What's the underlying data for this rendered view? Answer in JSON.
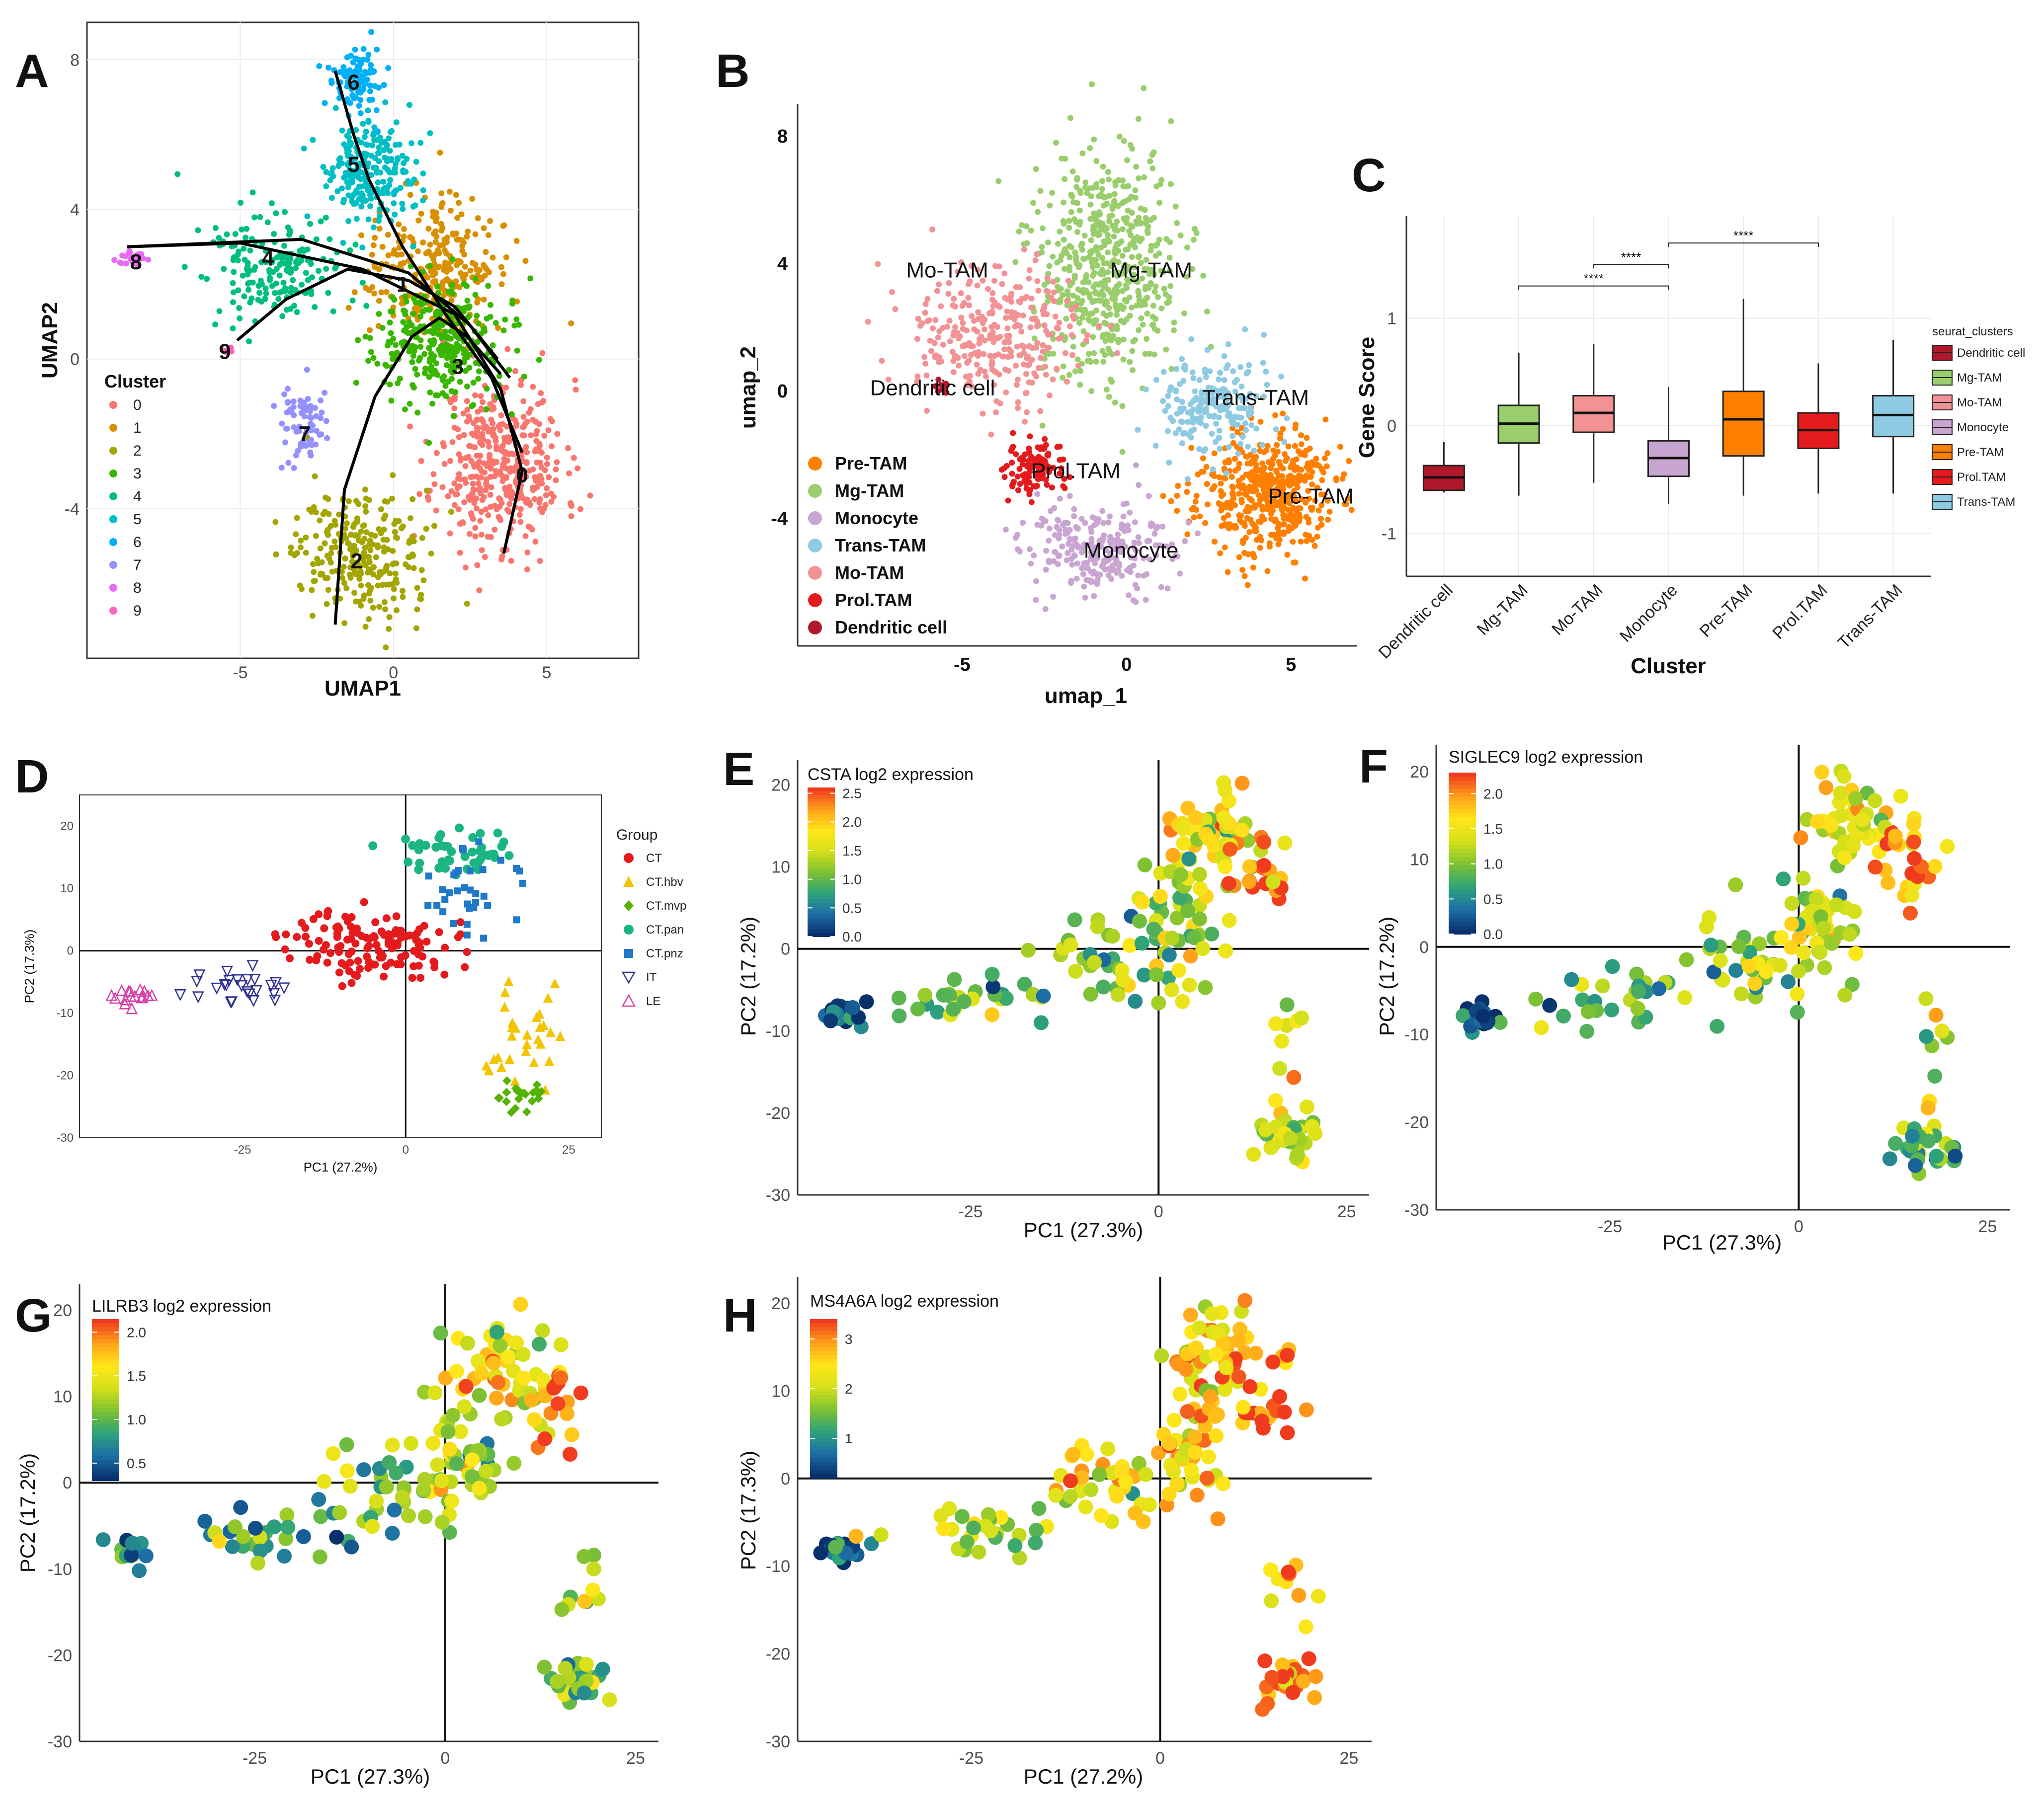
{
  "figure": {
    "panel_labels": [
      "A",
      "B",
      "C",
      "D",
      "E",
      "F",
      "G",
      "H"
    ],
    "colors": {
      "cluster_palette": [
        "#F8766D",
        "#D89000",
        "#A3A500",
        "#39B600",
        "#00BF7D",
        "#00BFC4",
        "#00B0F6",
        "#9590FF",
        "#E76BF3",
        "#FF62BC"
      ],
      "celltype": {
        "Pre-TAM": "#FF7F00",
        "Mg-TAM": "#9ACD6C",
        "Monocyte": "#C9A6D2",
        "Trans-TAM": "#8FCAE3",
        "Mo-TAM": "#F29294",
        "Prol.TAM": "#E41A1C",
        "Dendritic cell": "#B2182B"
      },
      "group": {
        "CT": "#E41A1C",
        "CT.hbv": "#F2C500",
        "CT.mvp": "#55B200",
        "CT.pan": "#1BB583",
        "CT.pnz": "#1F78C8",
        "IT": "#2E3192",
        "LE": "#D73FA8"
      },
      "gradient": [
        "#08306B",
        "#1D6FA6",
        "#2EA37A",
        "#7DC132",
        "#D4E01A",
        "#FFE71A",
        "#FFA21A",
        "#F03B1E"
      ]
    }
  },
  "chart_data": [
    {
      "id": "A",
      "type": "scatter",
      "xlabel": "UMAP1",
      "ylabel": "UMAP2",
      "xlim": [
        -10,
        8
      ],
      "ylim": [
        -8,
        9
      ],
      "xticks": [
        "-5",
        "0",
        "5"
      ],
      "yticks": [
        "-4",
        "0",
        "4",
        "8"
      ],
      "legend_title": "Cluster",
      "legend": [
        "0",
        "1",
        "2",
        "3",
        "4",
        "5",
        "6",
        "7",
        "8",
        "9"
      ],
      "clusters": [
        {
          "name": "0",
          "cx": 3.5,
          "cy": -2.8,
          "sx": 1.4,
          "sy": 1.5,
          "n": 420
        },
        {
          "name": "1",
          "cx": 1.3,
          "cy": 2.5,
          "sx": 1.3,
          "sy": 1.3,
          "n": 280
        },
        {
          "name": "2",
          "cx": -1.0,
          "cy": -5.2,
          "sx": 1.5,
          "sy": 1.1,
          "n": 260
        },
        {
          "name": "3",
          "cx": 1.6,
          "cy": 0.4,
          "sx": 1.4,
          "sy": 1.1,
          "n": 320
        },
        {
          "name": "4",
          "cx": -3.8,
          "cy": 2.4,
          "sx": 1.4,
          "sy": 1.0,
          "n": 190
        },
        {
          "name": "5",
          "cx": -0.8,
          "cy": 5.0,
          "sx": 1.0,
          "sy": 0.9,
          "n": 230
        },
        {
          "name": "6",
          "cx": -1.2,
          "cy": 7.4,
          "sx": 0.6,
          "sy": 0.6,
          "n": 100
        },
        {
          "name": "7",
          "cx": -2.9,
          "cy": -1.8,
          "sx": 0.5,
          "sy": 0.6,
          "n": 70
        },
        {
          "name": "8",
          "cx": -8.5,
          "cy": 2.7,
          "sx": 0.35,
          "sy": 0.15,
          "n": 35
        },
        {
          "name": "9",
          "cx": -5.4,
          "cy": 0.2,
          "sx": 0.1,
          "sy": 0.1,
          "n": 6
        }
      ],
      "cluster_labels": [
        {
          "t": "6",
          "x": -1.3,
          "y": 7.4
        },
        {
          "t": "5",
          "x": -1.3,
          "y": 5.2
        },
        {
          "t": "4",
          "x": -4.1,
          "y": 2.7
        },
        {
          "t": "8",
          "x": -8.4,
          "y": 2.6
        },
        {
          "t": "9",
          "x": -5.5,
          "y": 0.2
        },
        {
          "t": "1",
          "x": 0.3,
          "y": 2.0
        },
        {
          "t": "3",
          "x": 2.1,
          "y": -0.2
        },
        {
          "t": "7",
          "x": -2.9,
          "y": -2.0
        },
        {
          "t": "0",
          "x": 4.2,
          "y": -3.1
        },
        {
          "t": "2",
          "x": -1.2,
          "y": -5.4
        }
      ],
      "trajectories": [
        [
          [
            -8.7,
            3.0
          ],
          [
            -5,
            3.1
          ],
          [
            -1,
            2.4
          ],
          [
            2,
            1.2
          ],
          [
            3.5,
            -0.8
          ],
          [
            4.2,
            -3.0
          ],
          [
            3.6,
            -5.2
          ]
        ],
        [
          [
            -1.9,
            7.7
          ],
          [
            -1.3,
            6.0
          ],
          [
            -0.8,
            4.8
          ],
          [
            0.3,
            3.0
          ],
          [
            1.7,
            1.2
          ],
          [
            3.2,
            -0.5
          ],
          [
            4.2,
            -2.5
          ]
        ],
        [
          [
            -5.1,
            0.5
          ],
          [
            -3.5,
            1.6
          ],
          [
            -1.5,
            2.4
          ],
          [
            0.5,
            2.1
          ],
          [
            2,
            1.4
          ],
          [
            3.4,
            0
          ]
        ],
        [
          [
            -1.9,
            -7.1
          ],
          [
            -1.6,
            -3.5
          ],
          [
            -0.6,
            -1.0
          ],
          [
            0.6,
            0.6
          ],
          [
            1.5,
            1.1
          ],
          [
            2.4,
            0.6
          ],
          [
            3.5,
            -0.4
          ]
        ],
        [
          [
            -8.7,
            3.0
          ],
          [
            -3,
            3.2
          ],
          [
            0.5,
            2.3
          ],
          [
            2.5,
            0.9
          ],
          [
            3.8,
            -0.5
          ]
        ]
      ]
    },
    {
      "id": "B",
      "type": "scatter",
      "xlabel": "umap_1",
      "ylabel": "umap_2",
      "xlim": [
        -10,
        7
      ],
      "ylim": [
        -8,
        9
      ],
      "xticks": [
        "-5",
        "0",
        "5"
      ],
      "yticks": [
        "-4",
        "0",
        "4",
        "8"
      ],
      "legend": [
        "Pre-TAM",
        "Mg-TAM",
        "Monocyte",
        "Trans-TAM",
        "Mo-TAM",
        "Prol.TAM",
        "Dendritic cell"
      ],
      "clusters": [
        {
          "name": "Pre-TAM",
          "cx": 4.2,
          "cy": -3.2,
          "sx": 1.4,
          "sy": 1.3,
          "n": 480
        },
        {
          "name": "Mg-TAM",
          "cx": -0.6,
          "cy": 3.8,
          "sx": 1.4,
          "sy": 2.4,
          "n": 560
        },
        {
          "name": "Monocyte",
          "cx": -0.8,
          "cy": -5.0,
          "sx": 1.5,
          "sy": 1.0,
          "n": 260
        },
        {
          "name": "Trans-TAM",
          "cx": 2.6,
          "cy": -0.5,
          "sx": 1.1,
          "sy": 1.0,
          "n": 200
        },
        {
          "name": "Mo-TAM",
          "cx": -4.0,
          "cy": 1.8,
          "sx": 1.9,
          "sy": 1.3,
          "n": 300
        },
        {
          "name": "Prol.TAM",
          "cx": -2.8,
          "cy": -2.4,
          "sx": 0.6,
          "sy": 0.5,
          "n": 110
        },
        {
          "name": "Dendritic cell",
          "cx": -5.6,
          "cy": 0.2,
          "sx": 0.15,
          "sy": 0.15,
          "n": 10
        }
      ],
      "cluster_labels": [
        {
          "t": "Mo-TAM",
          "x": -6.7,
          "y": 3.8
        },
        {
          "t": "Mg-TAM",
          "x": -0.5,
          "y": 3.8
        },
        {
          "t": "Dendritic cell",
          "x": -7.8,
          "y": 0.1
        },
        {
          "t": "Trans-TAM",
          "x": 2.3,
          "y": -0.2
        },
        {
          "t": "Prol.TAM",
          "x": -2.9,
          "y": -2.5
        },
        {
          "t": "Pre-TAM",
          "x": 4.3,
          "y": -3.3
        },
        {
          "t": "Monocyte",
          "x": -1.3,
          "y": -5.0
        }
      ]
    },
    {
      "id": "C",
      "type": "box",
      "xlabel": "Cluster",
      "ylabel": "Gene Score",
      "ylim": [
        -1.4,
        1.95
      ],
      "yticks": [
        "-1",
        "0",
        "1"
      ],
      "legend_title": "seurat_clusters",
      "categories": [
        "Dendritic cell",
        "Mg-TAM",
        "Mo-TAM",
        "Monocyte",
        "Pre-TAM",
        "Prol.TAM",
        "Trans-TAM"
      ],
      "boxes": [
        {
          "min": -0.62,
          "q1": -0.6,
          "med": -0.48,
          "q3": -0.37,
          "max": -0.15
        },
        {
          "min": -0.65,
          "q1": -0.16,
          "med": 0.02,
          "q3": 0.19,
          "max": 0.68
        },
        {
          "min": -0.53,
          "q1": -0.06,
          "med": 0.12,
          "q3": 0.28,
          "max": 0.76
        },
        {
          "min": -0.73,
          "q1": -0.47,
          "med": -0.3,
          "q3": -0.14,
          "max": 0.36
        },
        {
          "min": -0.65,
          "q1": -0.28,
          "med": 0.06,
          "q3": 0.32,
          "max": 1.18
        },
        {
          "min": -0.63,
          "q1": -0.21,
          "med": -0.04,
          "q3": 0.12,
          "max": 0.58
        },
        {
          "min": -0.63,
          "q1": -0.1,
          "med": 0.1,
          "q3": 0.28,
          "max": 0.8
        }
      ],
      "significance": [
        {
          "from": "Mg-TAM",
          "to": "Monocyte",
          "y": 1.3,
          "label": "****"
        },
        {
          "from": "Monocyte",
          "to": "Mo-TAM",
          "y": 1.5,
          "label": "****"
        },
        {
          "from": "Monocyte",
          "to": "Prol.TAM",
          "y": 1.7,
          "label": "****"
        }
      ]
    },
    {
      "id": "D",
      "type": "scatter",
      "xlabel": "PC1 (27.2%)",
      "ylabel": "PC2 (17.3%)",
      "xlim": [
        -50,
        30
      ],
      "ylim": [
        -30,
        25
      ],
      "xticks": [
        "-25",
        "0",
        "25"
      ],
      "yticks": [
        "-30",
        "-20",
        "-10",
        "0",
        "10",
        "20"
      ],
      "legend_title": "Group",
      "legend": [
        "CT",
        "CT.hbv",
        "CT.mvp",
        "CT.pan",
        "CT.pnz",
        "IT",
        "LE"
      ],
      "groups": [
        {
          "name": "CT",
          "cx": -5,
          "cy": 1,
          "sx": 9,
          "sy": 4,
          "n": 130
        },
        {
          "name": "CT.hbv",
          "cx": 17,
          "cy": -14,
          "sx": 4,
          "sy": 7,
          "n": 30
        },
        {
          "name": "CT.mvp",
          "cx": 17,
          "cy": -23,
          "sx": 3,
          "sy": 2,
          "n": 22
        },
        {
          "name": "CT.pan",
          "cx": 8,
          "cy": 16,
          "sx": 6,
          "sy": 3,
          "n": 45
        },
        {
          "name": "CT.pnz",
          "cx": 10,
          "cy": 10,
          "sx": 5,
          "sy": 5,
          "n": 35
        },
        {
          "name": "IT",
          "cx": -25,
          "cy": -5,
          "sx": 6,
          "sy": 2.5,
          "n": 25
        },
        {
          "name": "LE",
          "cx": -42,
          "cy": -7,
          "sx": 2.5,
          "sy": 1.2,
          "n": 16
        }
      ]
    },
    {
      "id": "E",
      "type": "scatter",
      "title": "CSTA log2 expression",
      "xlabel": "PC1 (27.3%)",
      "ylabel": "PC2 (17.2%)",
      "xlim": [
        -48,
        28
      ],
      "ylim": [
        -30,
        23
      ],
      "xticks": [
        "-25",
        "0",
        "25"
      ],
      "yticks": [
        "-30",
        "-20",
        "-10",
        "0",
        "10",
        "20"
      ],
      "colorbar": {
        "min": 0.0,
        "max": 2.6,
        "ticks": [
          "2.5",
          "2.0",
          "1.5",
          "1.0",
          "0.5",
          "0.0"
        ],
        "tickvals": [
          2.5,
          2.0,
          1.5,
          1.0,
          0.5,
          0.0
        ]
      }
    },
    {
      "id": "F",
      "type": "scatter",
      "title": "SIGLEC9 log2 expression",
      "xlabel": "PC1 (27.3%)",
      "ylabel": "PC2 (17.2%)",
      "xlim": [
        -48,
        28
      ],
      "ylim": [
        -30,
        23
      ],
      "xticks": [
        "-25",
        "0",
        "25"
      ],
      "yticks": [
        "-30",
        "-20",
        "-10",
        "0",
        "10",
        "20"
      ],
      "colorbar": {
        "min": 0.0,
        "max": 2.3,
        "ticks": [
          "2.0",
          "1.5",
          "1.0",
          "0.5",
          "0.0"
        ],
        "tickvals": [
          2.0,
          1.5,
          1.0,
          0.5,
          0.0
        ]
      }
    },
    {
      "id": "G",
      "type": "scatter",
      "title": "LILRB3 log2 expression",
      "xlabel": "PC1 (27.3%)",
      "ylabel": "PC2 (17.2%)",
      "xlim": [
        -48,
        28
      ],
      "ylim": [
        -30,
        23
      ],
      "xticks": [
        "-25",
        "0",
        "25"
      ],
      "yticks": [
        "-30",
        "-20",
        "-10",
        "0",
        "10",
        "20"
      ],
      "colorbar": {
        "min": 0.3,
        "max": 2.15,
        "ticks": [
          "2.0",
          "1.5",
          "1.0",
          "0.5"
        ],
        "tickvals": [
          2.0,
          1.5,
          1.0,
          0.5
        ]
      }
    },
    {
      "id": "H",
      "type": "scatter",
      "title": "MS4A6A log2 expression",
      "xlabel": "PC1 (27.2%)",
      "ylabel": "PC2 (17.3%)",
      "xlim": [
        -48,
        28
      ],
      "ylim": [
        -30,
        23
      ],
      "xticks": [
        "-25",
        "0",
        "25"
      ],
      "yticks": [
        "-30",
        "-20",
        "-10",
        "0",
        "10",
        "20"
      ],
      "colorbar": {
        "min": 0.2,
        "max": 3.4,
        "ticks": [
          "3",
          "2",
          "1"
        ],
        "tickvals": [
          3,
          2,
          1
        ]
      }
    }
  ]
}
